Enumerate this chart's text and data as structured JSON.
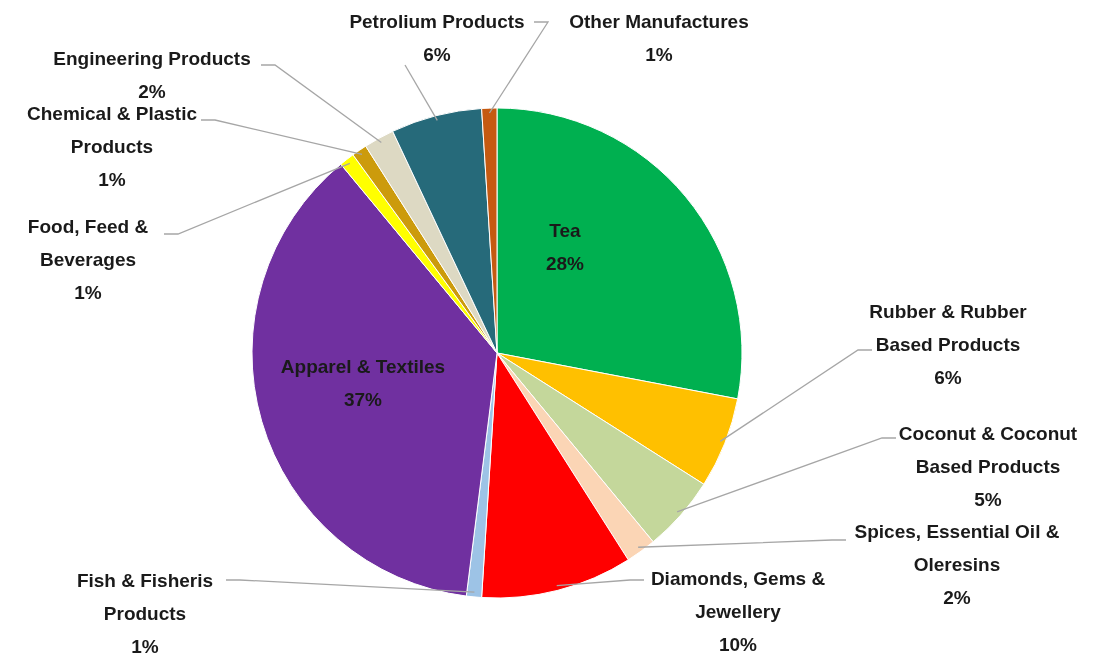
{
  "chart_data": {
    "type": "pie",
    "categories": [
      "Tea",
      "Rubber & Rubber Based Products",
      "Coconut & Coconut Based Products",
      "Spices, Essential Oil & Oleresins",
      "Diamonds, Gems & Jewellery",
      "Fish & Fisheris Products",
      "Apparel & Textiles",
      "Food, Feed & Beverages",
      "Chemical & Plastic Products",
      "Engineering Products",
      "Petrolium Products",
      "Other Manufactures"
    ],
    "values": [
      28,
      6,
      5,
      2,
      10,
      1,
      37,
      1,
      1,
      2,
      6,
      1
    ],
    "value_labels": [
      "28%",
      "6%",
      "5%",
      "2%",
      "10%",
      "1%",
      "37%",
      "1%",
      "1%",
      "2%",
      "6%",
      "1%"
    ],
    "colors": [
      "#00b050",
      "#ffc000",
      "#c4d79b",
      "#fbd5b5",
      "#ff0000",
      "#9dc3e6",
      "#7030a0",
      "#ffff00",
      "#cc9b0c",
      "#ddd9c3",
      "#266a7a",
      "#c55a11"
    ]
  }
}
